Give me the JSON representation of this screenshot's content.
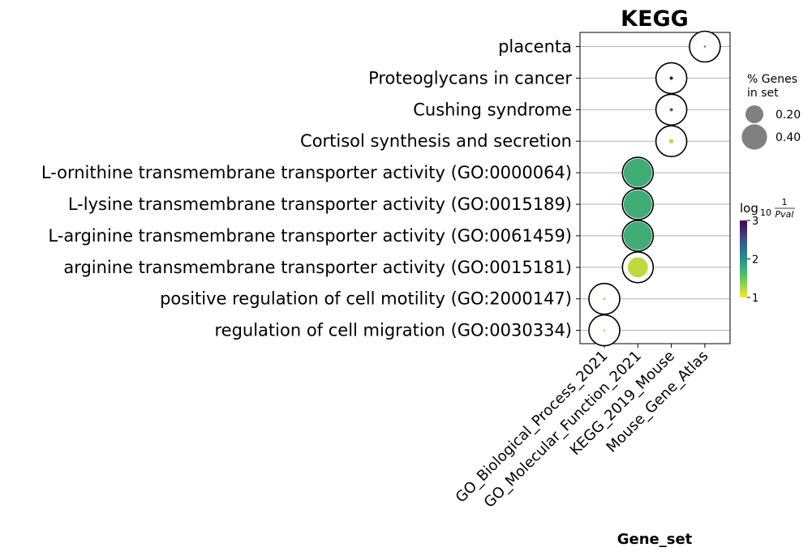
{
  "chart_data": {
    "type": "scatter",
    "title": "KEGG",
    "xlabel": "Gene_set",
    "ylabel": "",
    "x_categories": [
      "GO_Biological_Process_2021",
      "GO_Molecular_Function_2021",
      "KEGG_2019_Mouse",
      "Mouse_Gene_Atlas"
    ],
    "y_categories": [
      "placenta",
      "Proteoglycans in cancer",
      "Cushing syndrome",
      "Cortisol synthesis and secretion",
      "L-ornithine transmembrane transporter activity (GO:0000064)",
      "L-lysine transmembrane transporter activity (GO:0015189)",
      "L-arginine transmembrane transporter activity (GO:0061459)",
      "arginine transmembrane transporter activity (GO:0015181)",
      "positive regulation of cell motility (GO:2000147)",
      "regulation of cell migration (GO:0030334)"
    ],
    "points": [
      {
        "term": "placenta",
        "gene_set": "Mouse_Gene_Atlas",
        "pct_genes": 0.0025,
        "log10_inv_pval": 2.05
      },
      {
        "term": "Proteoglycans in cancer",
        "gene_set": "KEGG_2019_Mouse",
        "pct_genes": 0.007,
        "log10_inv_pval": 2.95
      },
      {
        "term": "Cushing syndrome",
        "gene_set": "KEGG_2019_Mouse",
        "pct_genes": 0.007,
        "log10_inv_pval": 2.35
      },
      {
        "term": "Cortisol synthesis and secretion",
        "gene_set": "KEGG_2019_Mouse",
        "pct_genes": 0.012,
        "log10_inv_pval": 1.2
      },
      {
        "term": "L-ornithine transmembrane transporter activity (GO:0000064)",
        "gene_set": "GO_Molecular_Function_2021",
        "pct_genes": 0.5,
        "log10_inv_pval": 1.75
      },
      {
        "term": "L-lysine transmembrane transporter activity (GO:0015189)",
        "gene_set": "GO_Molecular_Function_2021",
        "pct_genes": 0.5,
        "log10_inv_pval": 1.75
      },
      {
        "term": "L-arginine transmembrane transporter activity (GO:0061459)",
        "gene_set": "GO_Molecular_Function_2021",
        "pct_genes": 0.5,
        "log10_inv_pval": 1.75
      },
      {
        "term": "arginine transmembrane transporter activity (GO:0015181)",
        "gene_set": "GO_Molecular_Function_2021",
        "pct_genes": 0.25,
        "log10_inv_pval": 1.2
      },
      {
        "term": "positive regulation of cell motility (GO:2000147)",
        "gene_set": "GO_Biological_Process_2021",
        "pct_genes": 0.003,
        "log10_inv_pval": 1.3
      },
      {
        "term": "regulation of cell migration (GO:0030334)",
        "gene_set": "GO_Biological_Process_2021",
        "pct_genes": 0.0025,
        "log10_inv_pval": 1.3
      }
    ],
    "size_legend": {
      "title_line1": "% Genes",
      "title_line2": "in set",
      "entries": [
        {
          "label": "0.20",
          "value": 0.2
        },
        {
          "label": "0.40",
          "value": 0.4
        }
      ]
    },
    "colorbar": {
      "title_main": "log",
      "title_sub": "10",
      "title_num": "1",
      "title_den": "Pval",
      "range": [
        1,
        3
      ],
      "ticks": [
        {
          "label": "1",
          "value": 1
        },
        {
          "label": "2",
          "value": 2
        },
        {
          "label": "3",
          "value": 3
        }
      ],
      "colormap": "viridis_r"
    },
    "grid": "horizontal",
    "legend_position": "right"
  }
}
